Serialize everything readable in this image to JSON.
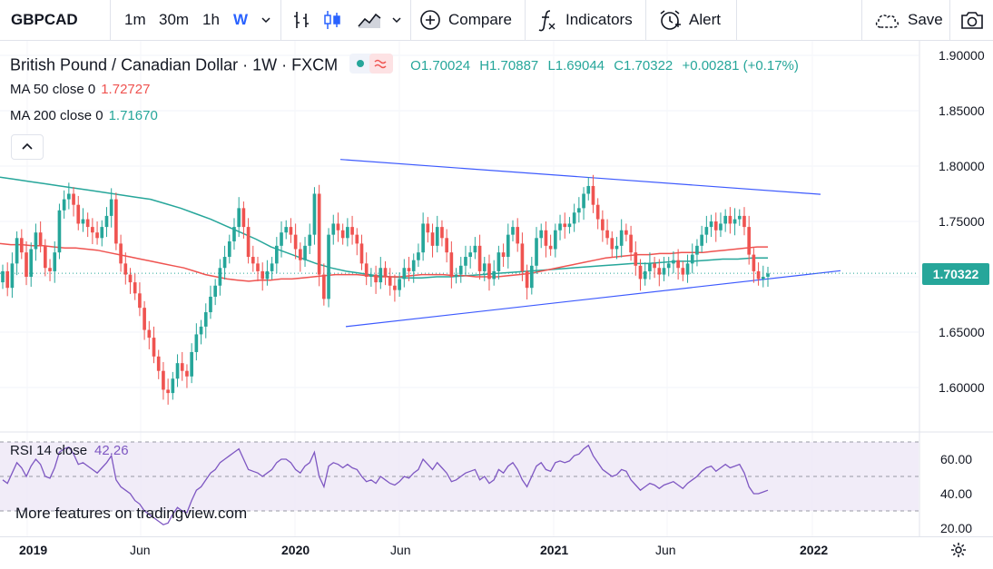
{
  "toolbar": {
    "symbol": "GBPCAD",
    "intervals": [
      "1m",
      "30m",
      "1h",
      "W"
    ],
    "active_interval": "W",
    "compare_label": "Compare",
    "indicators_label": "Indicators",
    "alert_label": "Alert",
    "save_label": "Save"
  },
  "legend": {
    "title": "British Pound / Canadian Dollar · 1W · FXCM",
    "open": "O1.70024",
    "high": "H1.70887",
    "low": "L1.69044",
    "close": "C1.70322",
    "change": "+0.00281 (+0.17%)",
    "ma50_label": "MA 50 close 0",
    "ma50_value": "1.72727",
    "ma200_label": "MA 200 close 0",
    "ma200_value": "1.71670"
  },
  "price_tag": "1.70322",
  "rsi": {
    "label": "RSI 14 close",
    "value": "42.26"
  },
  "watermark": "More features on tradingview.com",
  "colors": {
    "up": "#26a69a",
    "down": "#ef5350",
    "ma50": "#ef5350",
    "ma200": "#26a69a",
    "trend": "#3d5afe",
    "rsi": "#7e57c2"
  },
  "chart_data": {
    "type": "candlestick",
    "price_axis": {
      "ticks": [
        "1.90000",
        "1.85000",
        "1.80000",
        "1.75000",
        "1.70000",
        "1.65000",
        "1.60000"
      ],
      "ylim": [
        1.565,
        1.915
      ]
    },
    "time_axis": [
      "2019",
      "Jun",
      "2020",
      "Jun",
      "2021",
      "Jun",
      "2022"
    ],
    "rsi_axis": {
      "ticks": [
        "60.00",
        "40.00",
        "20.00"
      ],
      "ylim": [
        15,
        70
      ]
    },
    "closes": [
      1.705,
      1.69,
      1.712,
      1.735,
      1.722,
      1.7,
      1.725,
      1.74,
      1.728,
      1.708,
      1.705,
      1.722,
      1.76,
      1.77,
      1.775,
      1.765,
      1.748,
      1.752,
      1.745,
      1.74,
      1.735,
      1.745,
      1.755,
      1.77,
      1.73,
      1.712,
      1.702,
      1.695,
      1.685,
      1.672,
      1.652,
      1.645,
      1.628,
      1.615,
      1.598,
      1.595,
      1.608,
      1.622,
      1.615,
      1.61,
      1.632,
      1.648,
      1.655,
      1.668,
      1.682,
      1.692,
      1.708,
      1.718,
      1.732,
      1.745,
      1.762,
      1.745,
      1.718,
      1.712,
      1.705,
      1.698,
      1.705,
      1.712,
      1.728,
      1.74,
      1.745,
      1.738,
      1.725,
      1.715,
      1.728,
      1.738,
      1.775,
      1.702,
      1.68,
      1.738,
      1.748,
      1.742,
      1.735,
      1.745,
      1.738,
      1.73,
      1.712,
      1.7,
      1.702,
      1.695,
      1.708,
      1.7,
      1.692,
      1.688,
      1.698,
      1.708,
      1.705,
      1.715,
      1.722,
      1.748,
      1.74,
      1.728,
      1.745,
      1.735,
      1.722,
      1.7,
      1.702,
      1.71,
      1.718,
      1.722,
      1.728,
      1.705,
      1.712,
      1.698,
      1.705,
      1.722,
      1.718,
      1.738,
      1.745,
      1.73,
      1.705,
      1.69,
      1.71,
      1.735,
      1.742,
      1.728,
      1.725,
      1.742,
      1.748,
      1.745,
      1.748,
      1.758,
      1.762,
      1.775,
      1.782,
      1.765,
      1.752,
      1.742,
      1.735,
      1.725,
      1.728,
      1.742,
      1.738,
      1.722,
      1.71,
      1.698,
      1.705,
      1.712,
      1.708,
      1.702,
      1.708,
      1.712,
      1.715,
      1.708,
      1.702,
      1.712,
      1.72,
      1.728,
      1.738,
      1.745,
      1.75,
      1.742,
      1.748,
      1.755,
      1.748,
      1.752,
      1.755,
      1.745,
      1.72,
      1.705,
      1.698,
      1.7,
      1.703
    ],
    "opens": [
      1.695,
      1.705,
      1.69,
      1.712,
      1.735,
      1.722,
      1.7,
      1.725,
      1.74,
      1.728,
      1.708,
      1.705,
      1.722,
      1.76,
      1.77,
      1.775,
      1.765,
      1.748,
      1.752,
      1.745,
      1.74,
      1.735,
      1.745,
      1.755,
      1.77,
      1.73,
      1.712,
      1.702,
      1.695,
      1.685,
      1.672,
      1.652,
      1.645,
      1.628,
      1.615,
      1.598,
      1.595,
      1.608,
      1.622,
      1.615,
      1.61,
      1.632,
      1.648,
      1.655,
      1.668,
      1.682,
      1.692,
      1.708,
      1.718,
      1.732,
      1.745,
      1.762,
      1.745,
      1.718,
      1.712,
      1.705,
      1.698,
      1.705,
      1.712,
      1.728,
      1.74,
      1.745,
      1.738,
      1.725,
      1.715,
      1.728,
      1.738,
      1.775,
      1.702,
      1.68,
      1.738,
      1.748,
      1.742,
      1.735,
      1.745,
      1.738,
      1.73,
      1.712,
      1.7,
      1.702,
      1.695,
      1.708,
      1.7,
      1.692,
      1.688,
      1.698,
      1.708,
      1.705,
      1.715,
      1.722,
      1.748,
      1.74,
      1.728,
      1.745,
      1.735,
      1.722,
      1.7,
      1.702,
      1.71,
      1.718,
      1.722,
      1.728,
      1.705,
      1.712,
      1.698,
      1.705,
      1.722,
      1.718,
      1.738,
      1.745,
      1.73,
      1.705,
      1.69,
      1.71,
      1.735,
      1.742,
      1.728,
      1.725,
      1.742,
      1.748,
      1.745,
      1.748,
      1.758,
      1.762,
      1.775,
      1.782,
      1.765,
      1.752,
      1.742,
      1.735,
      1.725,
      1.728,
      1.742,
      1.738,
      1.722,
      1.71,
      1.698,
      1.705,
      1.712,
      1.708,
      1.702,
      1.708,
      1.712,
      1.715,
      1.708,
      1.702,
      1.712,
      1.72,
      1.728,
      1.738,
      1.745,
      1.75,
      1.742,
      1.748,
      1.755,
      1.748,
      1.752,
      1.755,
      1.745,
      1.72,
      1.705,
      1.698,
      1.7
    ],
    "ma50": [
      1.73,
      1.729,
      1.729,
      1.728,
      1.728,
      1.727,
      1.726,
      1.726,
      1.725,
      1.724,
      1.722,
      1.72,
      1.718,
      1.716,
      1.714,
      1.712,
      1.71,
      1.708,
      1.705,
      1.702,
      1.7,
      1.698,
      1.697,
      1.696,
      1.697,
      1.697,
      1.698,
      1.698,
      1.699,
      1.7,
      1.701,
      1.702,
      1.702,
      1.702,
      1.701,
      1.7,
      1.7,
      1.7,
      1.701,
      1.702,
      1.702,
      1.702,
      1.701,
      1.701,
      1.7,
      1.7,
      1.7,
      1.701,
      1.702,
      1.703,
      1.705,
      1.707,
      1.709,
      1.711,
      1.713,
      1.715,
      1.717,
      1.718,
      1.719,
      1.72,
      1.72,
      1.721,
      1.721,
      1.722,
      1.722,
      1.722,
      1.723,
      1.724,
      1.725,
      1.726,
      1.727,
      1.727
    ],
    "ma200": [
      1.79,
      1.788,
      1.786,
      1.784,
      1.782,
      1.78,
      1.778,
      1.776,
      1.774,
      1.772,
      1.77,
      1.766,
      1.762,
      1.757,
      1.752,
      1.746,
      1.74,
      1.734,
      1.727,
      1.722,
      1.717,
      1.712,
      1.708,
      1.705,
      1.703,
      1.701,
      1.7,
      1.699,
      1.699,
      1.7,
      1.7,
      1.701,
      1.702,
      1.703,
      1.704,
      1.705,
      1.706,
      1.707,
      1.708,
      1.709,
      1.71,
      1.711,
      1.712,
      1.712,
      1.713,
      1.714,
      1.714,
      1.715,
      1.716,
      1.716,
      1.717,
      1.717
    ],
    "rsi": [
      48,
      46,
      52,
      58,
      55,
      50,
      56,
      60,
      57,
      50,
      49,
      55,
      64,
      66,
      67,
      63,
      57,
      58,
      56,
      54,
      52,
      55,
      58,
      62,
      48,
      44,
      42,
      40,
      36,
      34,
      30,
      28,
      26,
      24,
      22,
      23,
      28,
      32,
      30,
      29,
      36,
      42,
      44,
      48,
      52,
      54,
      58,
      60,
      62,
      64,
      66,
      60,
      54,
      53,
      52,
      50,
      52,
      54,
      58,
      60,
      60,
      58,
      54,
      52,
      56,
      58,
      64,
      50,
      44,
      56,
      58,
      57,
      55,
      57,
      55,
      54,
      50,
      47,
      48,
      46,
      50,
      48,
      46,
      45,
      47,
      50,
      49,
      52,
      54,
      60,
      57,
      54,
      58,
      55,
      52,
      47,
      48,
      50,
      52,
      53,
      54,
      48,
      50,
      46,
      48,
      54,
      52,
      56,
      58,
      54,
      48,
      44,
      50,
      56,
      58,
      54,
      53,
      58,
      59,
      58,
      59,
      62,
      63,
      66,
      68,
      62,
      58,
      54,
      52,
      50,
      51,
      54,
      53,
      48,
      45,
      42,
      44,
      46,
      45,
      43,
      45,
      46,
      47,
      45,
      43,
      46,
      48,
      50,
      53,
      55,
      56,
      53,
      55,
      57,
      55,
      56,
      57,
      52,
      44,
      40,
      40,
      41,
      42
    ]
  }
}
